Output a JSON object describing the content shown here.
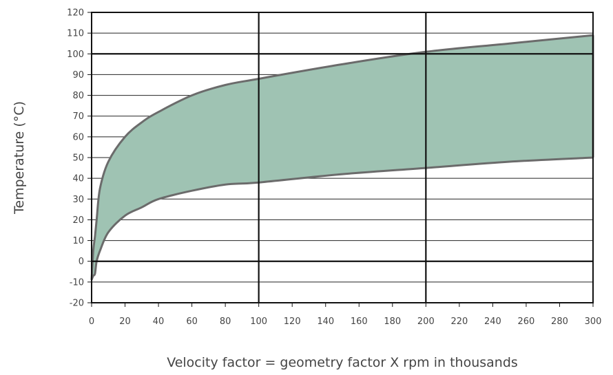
{
  "chart_data": {
    "type": "area",
    "title": "",
    "xlabel": "Velocity factor = geometry factor X rpm in thousands",
    "ylabel": "Temperature (°C)",
    "xlim": [
      0,
      300
    ],
    "ylim": [
      -20,
      120
    ],
    "x_ticks": [
      0,
      20,
      40,
      60,
      80,
      100,
      120,
      140,
      160,
      180,
      200,
      220,
      240,
      260,
      280,
      300
    ],
    "y_ticks": [
      -20,
      -10,
      0,
      10,
      20,
      30,
      40,
      50,
      60,
      70,
      80,
      90,
      100,
      110,
      120
    ],
    "major_x_gridlines": [
      100,
      200
    ],
    "major_y_gridlines": [
      0,
      100
    ],
    "grid": true,
    "legend": "none",
    "fill_color": "#9fc3b3",
    "line_color": "#6b6b6b",
    "series": [
      {
        "x": [
          0,
          1,
          2,
          3,
          5,
          10,
          20,
          30,
          40,
          60,
          80,
          100,
          150,
          200,
          250,
          300
        ],
        "values": [
          -9,
          5,
          12,
          20,
          35,
          48,
          60,
          67,
          72,
          80,
          85,
          88,
          95,
          101,
          105,
          109
        ]
      },
      {
        "x": [
          0,
          1,
          2,
          3,
          5,
          10,
          20,
          30,
          40,
          60,
          80,
          100,
          150,
          200,
          250,
          300
        ],
        "values": [
          -9,
          -7,
          -6,
          0,
          5,
          14,
          22,
          26,
          30,
          34,
          37,
          38,
          42,
          45,
          48,
          50
        ]
      }
    ]
  }
}
